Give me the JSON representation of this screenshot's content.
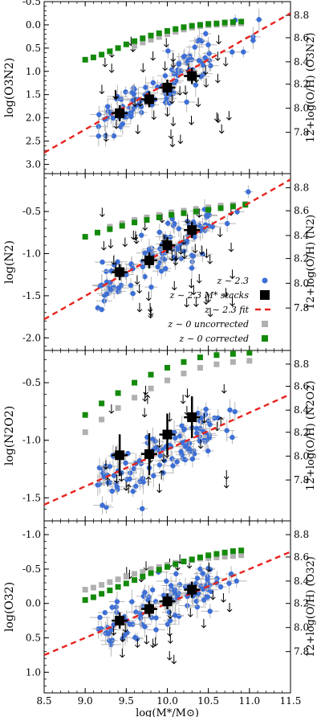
{
  "colors": {
    "points": "#3d6fd6",
    "errorbars": "#b8b8b8",
    "stacks": "#000000",
    "fit": "#e8231d",
    "z0_uncorrected": "#b0b0b0",
    "z0_corrected": "#138a0a",
    "upper_limit": "#000000"
  },
  "xaxis": {
    "label": "log(M*/M⊙)",
    "range": [
      8.5,
      11.5
    ],
    "ticks": [
      "8.5",
      "9.0",
      "9.5",
      "10.0",
      "10.5",
      "11.0",
      "11.5"
    ]
  },
  "legend": {
    "entries": [
      "z ∼ 2.3",
      "z ∼ 2.3 M* stacks",
      "z ∼ 2.3 fit",
      "z ∼ 0 uncorrected",
      "z ∼ 0 corrected"
    ]
  },
  "chart_data": [
    {
      "type": "scatter",
      "panel": "O3N2",
      "ylabel": "log(O3N2)",
      "right_label": "12+log(O/H) (O3N2)",
      "ylim": [
        3.2,
        -0.5
      ],
      "yticks": [
        "-0.5",
        "0.0",
        "0.5",
        "1.0",
        "1.5",
        "2.0",
        "2.5",
        "3.0"
      ],
      "right_ticks": [
        "8.8",
        "8.6",
        "8.4",
        "8.2",
        "8.0",
        "7.8"
      ],
      "fit": {
        "x": [
          8.5,
          11.5
        ],
        "y": [
          2.75,
          -0.25
        ]
      },
      "stacks": {
        "x": [
          9.42,
          9.78,
          10.0,
          10.3
        ],
        "y": [
          1.9,
          1.6,
          1.35,
          1.1
        ]
      },
      "z0_uncorrected": {
        "x": [
          9.6,
          9.7,
          9.8,
          9.9,
          10.0,
          10.1,
          10.2,
          10.3,
          10.4,
          10.5,
          10.6,
          10.7,
          10.8,
          10.9
        ],
        "y": [
          0.45,
          0.38,
          0.32,
          0.26,
          0.2,
          0.15,
          0.1,
          0.06,
          0.03,
          0.01,
          0.0,
          -0.01,
          -0.02,
          -0.03
        ]
      },
      "z0_corrected": {
        "x": [
          9.0,
          9.1,
          9.2,
          9.3,
          9.4,
          9.5,
          9.6,
          9.7,
          9.8,
          9.9,
          10.0,
          10.1,
          10.2,
          10.3,
          10.4,
          10.5,
          10.6,
          10.7,
          10.8,
          10.9
        ],
        "y": [
          0.75,
          0.7,
          0.64,
          0.57,
          0.5,
          0.42,
          0.35,
          0.29,
          0.23,
          0.18,
          0.13,
          0.09,
          0.05,
          0.02,
          0.0,
          -0.02,
          -0.03,
          -0.05,
          -0.06,
          -0.07
        ]
      }
    },
    {
      "type": "scatter",
      "panel": "N2",
      "ylabel": "log(N2)",
      "right_label": "12+log(O/H) (N2)",
      "ylim": [
        -2.15,
        -0.05
      ],
      "yticks": [
        "-0.5",
        "-1.0",
        "-1.5",
        "-2.0"
      ],
      "right_ticks": [
        "8.8",
        "8.6",
        "8.4",
        "8.2",
        "8.0",
        "7.8"
      ],
      "fit": {
        "x": [
          8.5,
          11.5
        ],
        "y": [
          -1.78,
          -0.12
        ]
      },
      "stacks": {
        "x": [
          9.42,
          9.78,
          10.0,
          10.3
        ],
        "y": [
          -1.22,
          -1.08,
          -0.9,
          -0.72
        ]
      },
      "z0_uncorrected": {
        "x": [
          9.3,
          9.45,
          9.6,
          9.75,
          9.9,
          10.05,
          10.2,
          10.35,
          10.5,
          10.65,
          10.8,
          10.95
        ],
        "y": [
          -0.68,
          -0.64,
          -0.6,
          -0.57,
          -0.54,
          -0.51,
          -0.49,
          -0.47,
          -0.45,
          -0.43,
          -0.42,
          -0.41
        ]
      },
      "z0_corrected": {
        "x": [
          9.0,
          9.15,
          9.3,
          9.45,
          9.6,
          9.75,
          9.9,
          10.05,
          10.2,
          10.35,
          10.5,
          10.65,
          10.8,
          10.95
        ],
        "y": [
          -0.8,
          -0.75,
          -0.71,
          -0.67,
          -0.63,
          -0.6,
          -0.57,
          -0.54,
          -0.52,
          -0.5,
          -0.48,
          -0.46,
          -0.44,
          -0.42
        ]
      }
    },
    {
      "type": "scatter",
      "panel": "N2O2",
      "ylabel": "log(N2O2)",
      "right_label": "12+log(O/H) (N2O2)",
      "ylim": [
        -1.7,
        -0.22
      ],
      "yticks": [
        "-0.5",
        "-1.0",
        "-1.5"
      ],
      "right_ticks": [
        "8.8",
        "8.6",
        "8.4",
        "8.2",
        "8.0",
        "7.8"
      ],
      "fit": {
        "x": [
          8.5,
          11.5
        ],
        "y": [
          -1.56,
          -0.6
        ]
      },
      "stacks": {
        "x": [
          9.42,
          9.78,
          10.0,
          10.3
        ],
        "y": [
          -1.13,
          -1.12,
          -0.95,
          -0.8
        ]
      },
      "z0_uncorrected": {
        "x": [
          9.0,
          9.2,
          9.4,
          9.6,
          9.8,
          10.0,
          10.2,
          10.4,
          10.6,
          10.8,
          11.0
        ],
        "y": [
          -0.93,
          -0.82,
          -0.72,
          -0.63,
          -0.55,
          -0.48,
          -0.42,
          -0.37,
          -0.34,
          -0.32,
          -0.31
        ]
      },
      "z0_corrected": {
        "x": [
          9.0,
          9.2,
          9.4,
          9.6,
          9.8,
          10.0,
          10.2,
          10.4,
          10.6,
          10.8,
          11.0
        ],
        "y": [
          -0.78,
          -0.68,
          -0.59,
          -0.5,
          -0.43,
          -0.37,
          -0.32,
          -0.28,
          -0.26,
          -0.25,
          -0.24
        ]
      }
    },
    {
      "type": "scatter",
      "panel": "O32",
      "ylabel": "log(O32)",
      "right_label": "12+log(O/H) (O32)",
      "ylim": [
        1.3,
        -1.2
      ],
      "yticks": [
        "-1.0",
        "-0.5",
        "0.0",
        "0.5",
        "1.0"
      ],
      "right_ticks": [
        "8.8",
        "8.6",
        "8.4",
        "8.2",
        "8.0",
        "7.8"
      ],
      "fit": {
        "x": [
          8.5,
          11.5
        ],
        "y": [
          0.75,
          -0.75
        ]
      },
      "stacks": {
        "x": [
          9.42,
          9.78,
          10.0,
          10.3
        ],
        "y": [
          0.25,
          0.08,
          -0.03,
          -0.2
        ]
      },
      "z0_uncorrected": {
        "x": [
          9.0,
          9.1,
          9.2,
          9.3,
          9.4,
          9.5,
          9.6,
          9.7,
          9.8,
          9.9,
          10.0,
          10.1,
          10.2,
          10.3,
          10.4,
          10.5,
          10.6,
          10.7,
          10.8,
          10.9
        ],
        "y": [
          -0.2,
          -0.23,
          -0.27,
          -0.31,
          -0.35,
          -0.39,
          -0.43,
          -0.46,
          -0.5,
          -0.53,
          -0.56,
          -0.59,
          -0.61,
          -0.63,
          -0.65,
          -0.66,
          -0.67,
          -0.68,
          -0.69,
          -0.7
        ]
      },
      "z0_corrected": {
        "x": [
          9.0,
          9.1,
          9.2,
          9.3,
          9.4,
          9.5,
          9.6,
          9.7,
          9.8,
          9.9,
          10.0,
          10.1,
          10.2,
          10.3,
          10.4,
          10.5,
          10.6,
          10.7,
          10.8,
          10.9
        ],
        "y": [
          -0.05,
          -0.09,
          -0.14,
          -0.19,
          -0.24,
          -0.29,
          -0.34,
          -0.39,
          -0.44,
          -0.49,
          -0.53,
          -0.57,
          -0.61,
          -0.64,
          -0.67,
          -0.7,
          -0.72,
          -0.74,
          -0.76,
          -0.77
        ]
      }
    }
  ]
}
